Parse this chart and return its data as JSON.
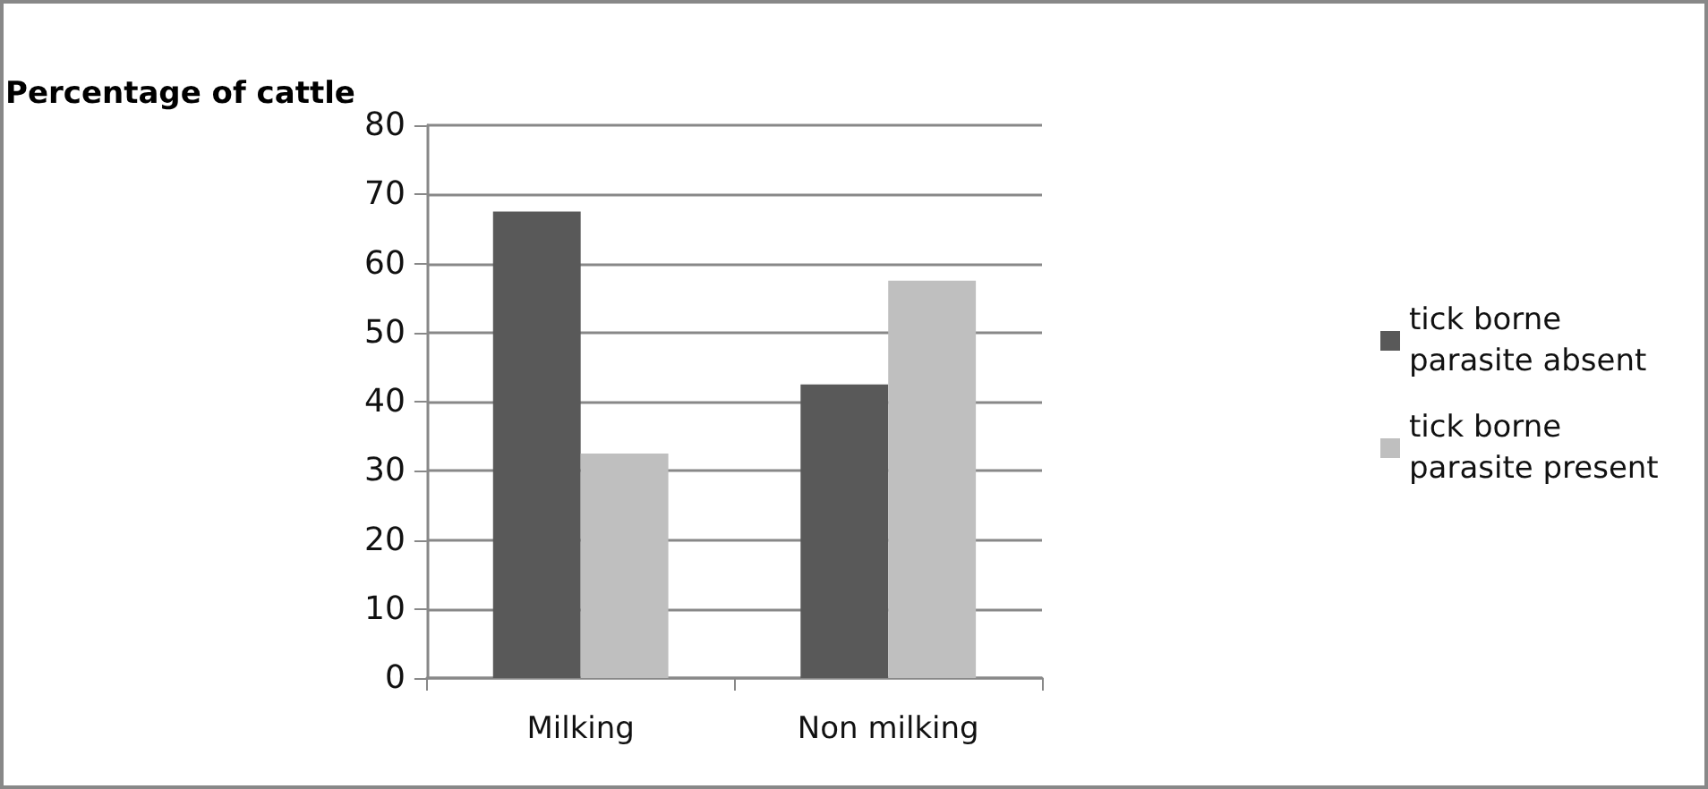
{
  "chart_data": {
    "type": "bar",
    "ylabel": "Percentage of cattle",
    "categories": [
      "Milking",
      "Non milking"
    ],
    "series": [
      {
        "name": "tick borne parasite absent",
        "color": "#595959",
        "values": [
          67.5,
          42.5
        ]
      },
      {
        "name": "tick borne parasite present",
        "color": "#bfbfbf",
        "values": [
          32.5,
          57.5
        ]
      }
    ],
    "ylim": [
      0,
      80
    ],
    "yticks": [
      0,
      10,
      20,
      30,
      40,
      50,
      60,
      70,
      80
    ],
    "grid": "y",
    "legend": "right"
  }
}
